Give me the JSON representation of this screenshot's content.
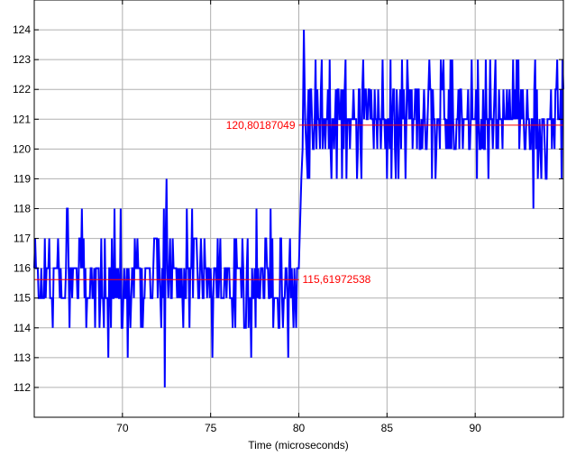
{
  "chart_data": {
    "type": "line",
    "title": "",
    "xlabel": "Time (microseconds)",
    "ylabel": "",
    "xlim": [
      65.0,
      95.0
    ],
    "ylim": [
      111.0,
      125.0
    ],
    "xticks": [
      70,
      75,
      80,
      85,
      90
    ],
    "yticks": [
      112,
      113,
      114,
      115,
      116,
      117,
      118,
      119,
      120,
      121,
      122,
      123,
      124
    ],
    "grid": true,
    "legend": "none",
    "series": [
      {
        "color": "#0000ff",
        "segments": [
          {
            "x_start": 65.0,
            "x_end": 79.9,
            "step": 0.05,
            "levels": [
              114,
              115,
              116,
              117,
              118
            ],
            "weights": [
              0.12,
              0.36,
              0.36,
              0.12,
              0.04
            ],
            "outliers": [
              [
                69.2,
                113
              ],
              [
                70.3,
                113
              ],
              [
                72.4,
                112
              ],
              [
                72.5,
                119
              ],
              [
                75.1,
                113
              ],
              [
                77.3,
                113
              ],
              [
                79.4,
                113
              ]
            ]
          },
          {
            "x_start": 80.0,
            "x_end": 80.5,
            "values": [
              116,
              117.5,
              119,
              120,
              124,
              121,
              120,
              119
            ]
          },
          {
            "x_start": 80.5,
            "x_end": 95.0,
            "step": 0.05,
            "levels": [
              119,
              120,
              121,
              122,
              123
            ],
            "weights": [
              0.06,
              0.22,
              0.4,
              0.24,
              0.08
            ],
            "outliers": [
              [
                93.3,
                118
              ],
              [
                93.4,
                123
              ],
              [
                94.0,
                119
              ],
              [
                94.6,
                122
              ]
            ]
          }
        ]
      },
      {
        "color": "#ff0000",
        "x": [
          65.0,
          80.0
        ],
        "y": [
          115.61972538,
          115.61972538
        ]
      },
      {
        "color": "#ff0000",
        "x": [
          80.0,
          95.0
        ],
        "y": [
          120.80187049,
          120.80187049
        ]
      }
    ],
    "annotations": [
      {
        "text": "115,61972538",
        "x": 80.0,
        "y": 115.62,
        "anchor": "right-of",
        "color": "#ff0000"
      },
      {
        "text": "120,80187049",
        "x": 80.0,
        "y": 120.8,
        "anchor": "left-of",
        "color": "#ff0000"
      }
    ]
  }
}
